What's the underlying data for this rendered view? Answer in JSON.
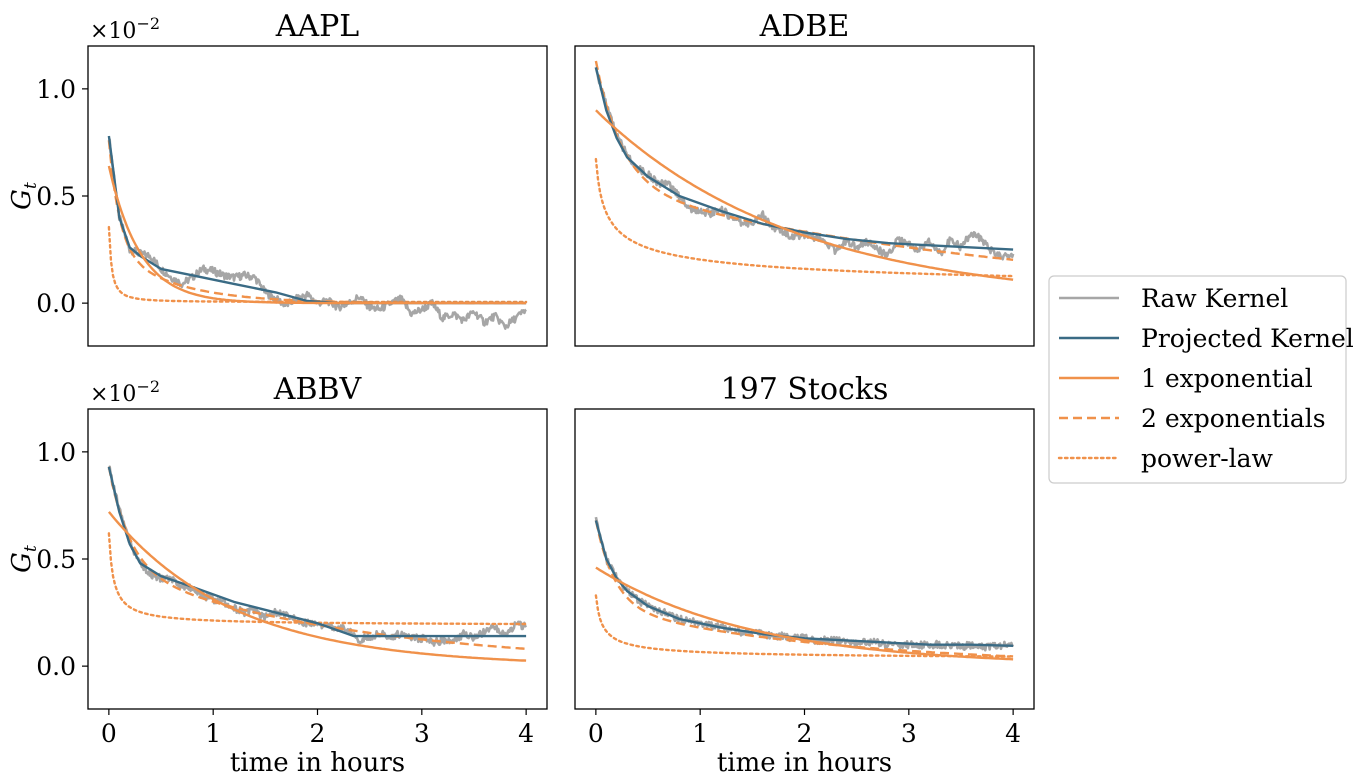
{
  "chart_data": {
    "type": "line",
    "figure": {
      "xlabel": "time in hours",
      "ylabel": "G_t",
      "ylabel_main": "G",
      "ylabel_sub": "t",
      "scale_base": "×10",
      "scale_exp": "−2",
      "xlim": [
        -0.2,
        4.2
      ],
      "ylim": [
        -0.2,
        1.2
      ],
      "xticks": [
        0,
        1,
        2,
        3,
        4
      ],
      "yticks": [
        0.0,
        0.5,
        1.0
      ],
      "xtick_labels": [
        "0",
        "1",
        "2",
        "3",
        "4"
      ],
      "ytick_labels": [
        "0.0",
        "0.5",
        "1.0"
      ],
      "shared_x": true,
      "shared_y": true
    },
    "legend": {
      "placement": "right",
      "entries": [
        {
          "label": "Raw Kernel",
          "color": "#a6a6a6",
          "style": "solid"
        },
        {
          "label": "Projected Kernel",
          "color": "#3a6b85",
          "style": "solid"
        },
        {
          "label": "1 exponential",
          "color": "#f0914a",
          "style": "solid"
        },
        {
          "label": "2 exponentials",
          "color": "#f0914a",
          "style": "dashed"
        },
        {
          "label": "power-law",
          "color": "#f0914a",
          "style": "dotted"
        }
      ]
    },
    "panels": [
      {
        "title": "AAPL",
        "raw": {
          "x": [
            0,
            0.1,
            0.2,
            0.3,
            0.4,
            0.5,
            0.6,
            0.7,
            0.8,
            0.9,
            1.0,
            1.1,
            1.2,
            1.3,
            1.4,
            1.5,
            1.6,
            1.7,
            1.8,
            1.9,
            2.0,
            2.1,
            2.2,
            2.3,
            2.4,
            2.5,
            2.6,
            2.7,
            2.8,
            2.9,
            3.0,
            3.1,
            3.2,
            3.3,
            3.4,
            3.5,
            3.6,
            3.7,
            3.8,
            3.9,
            4.0
          ],
          "y": [
            0.78,
            0.4,
            0.25,
            0.23,
            0.22,
            0.16,
            0.12,
            0.09,
            0.12,
            0.16,
            0.15,
            0.13,
            0.12,
            0.13,
            0.12,
            0.05,
            0.02,
            -0.01,
            0.02,
            0.04,
            0.0,
            0.01,
            -0.02,
            0.0,
            0.03,
            -0.02,
            -0.03,
            0.0,
            0.02,
            -0.05,
            -0.03,
            0.0,
            -0.07,
            -0.05,
            -0.08,
            -0.04,
            -0.09,
            -0.06,
            -0.11,
            -0.07,
            -0.03
          ]
        },
        "projected": {
          "x": [
            0,
            0.1,
            0.2,
            0.3,
            0.5,
            0.8,
            1.2,
            1.6,
            1.9,
            2.2,
            2.6,
            3.0,
            3.5,
            4.0
          ],
          "y": [
            0.78,
            0.4,
            0.26,
            0.22,
            0.16,
            0.13,
            0.09,
            0.05,
            0.01,
            0.0,
            0.0,
            0.0,
            0.0,
            0.0
          ]
        },
        "one_exp": {
          "A": 0.64,
          "tau": 0.3,
          "c": 0.0
        },
        "two_exp": {
          "A1": 0.5,
          "tau1": 0.1,
          "A2": 0.26,
          "tau2": 0.6,
          "c": 0.0
        },
        "power": {
          "a": 0.35,
          "b": 0.005,
          "k": 1.5,
          "x0": 0.04,
          "c": 0.0
        }
      },
      {
        "title": "ADBE",
        "raw": {
          "x": [
            0,
            0.1,
            0.2,
            0.3,
            0.4,
            0.5,
            0.6,
            0.7,
            0.8,
            0.9,
            1.0,
            1.1,
            1.2,
            1.3,
            1.4,
            1.5,
            1.6,
            1.7,
            1.8,
            1.9,
            2.0,
            2.1,
            2.2,
            2.3,
            2.4,
            2.5,
            2.6,
            2.7,
            2.8,
            2.9,
            3.0,
            3.1,
            3.2,
            3.3,
            3.4,
            3.5,
            3.6,
            3.7,
            3.8,
            3.9,
            4.0
          ],
          "y": [
            1.1,
            0.92,
            0.78,
            0.69,
            0.63,
            0.6,
            0.56,
            0.55,
            0.5,
            0.44,
            0.43,
            0.42,
            0.44,
            0.4,
            0.37,
            0.38,
            0.41,
            0.35,
            0.33,
            0.31,
            0.32,
            0.3,
            0.29,
            0.24,
            0.29,
            0.26,
            0.29,
            0.25,
            0.22,
            0.3,
            0.27,
            0.25,
            0.29,
            0.23,
            0.3,
            0.26,
            0.33,
            0.3,
            0.24,
            0.22,
            0.23
          ]
        },
        "projected": {
          "x": [
            0,
            0.1,
            0.2,
            0.3,
            0.5,
            0.8,
            1.2,
            1.6,
            2.0,
            2.4,
            2.8,
            3.2,
            3.6,
            4.0
          ],
          "y": [
            1.1,
            0.9,
            0.77,
            0.68,
            0.59,
            0.5,
            0.43,
            0.37,
            0.33,
            0.3,
            0.28,
            0.27,
            0.26,
            0.25
          ]
        },
        "one_exp": {
          "A": 0.9,
          "tau": 1.9,
          "c": 0.0
        },
        "two_exp": {
          "A1": 0.58,
          "tau1": 0.25,
          "A2": 0.55,
          "tau2": 4.0,
          "c": 0.0
        },
        "power": {
          "a": 0.66,
          "b": 0.012,
          "k": 0.38,
          "x0": 0.04,
          "c": 0.0
        }
      },
      {
        "title": "ABBV",
        "raw": {
          "x": [
            0,
            0.1,
            0.2,
            0.3,
            0.4,
            0.5,
            0.6,
            0.7,
            0.8,
            0.9,
            1.0,
            1.1,
            1.2,
            1.3,
            1.4,
            1.5,
            1.6,
            1.7,
            1.8,
            1.9,
            2.0,
            2.1,
            2.2,
            2.3,
            2.4,
            2.5,
            2.6,
            2.7,
            2.8,
            2.9,
            3.0,
            3.1,
            3.2,
            3.3,
            3.4,
            3.5,
            3.6,
            3.7,
            3.8,
            3.9,
            4.0
          ],
          "y": [
            0.93,
            0.73,
            0.58,
            0.48,
            0.43,
            0.41,
            0.4,
            0.38,
            0.36,
            0.33,
            0.31,
            0.3,
            0.27,
            0.25,
            0.26,
            0.23,
            0.25,
            0.24,
            0.22,
            0.2,
            0.19,
            0.19,
            0.18,
            0.17,
            0.12,
            0.14,
            0.15,
            0.14,
            0.15,
            0.13,
            0.13,
            0.11,
            0.12,
            0.12,
            0.15,
            0.13,
            0.16,
            0.18,
            0.15,
            0.19,
            0.19
          ]
        },
        "projected": {
          "x": [
            0,
            0.1,
            0.2,
            0.3,
            0.5,
            0.8,
            1.2,
            1.6,
            2.0,
            2.35,
            2.6,
            3.0,
            3.5,
            4.0
          ],
          "y": [
            0.93,
            0.72,
            0.57,
            0.48,
            0.42,
            0.37,
            0.3,
            0.25,
            0.2,
            0.14,
            0.14,
            0.14,
            0.14,
            0.14
          ]
        },
        "one_exp": {
          "A": 0.72,
          "tau": 1.2,
          "c": 0.0
        },
        "two_exp": {
          "A1": 0.47,
          "tau1": 0.2,
          "A2": 0.46,
          "tau2": 2.3,
          "c": 0.0
        },
        "power": {
          "a": 0.43,
          "b": 0.07,
          "k": 0.9,
          "x0": 0.04,
          "c": 0.12
        }
      },
      {
        "title": "197 Stocks",
        "raw": {
          "x": [
            0,
            0.1,
            0.2,
            0.3,
            0.4,
            0.5,
            0.6,
            0.7,
            0.8,
            0.9,
            1.0,
            1.1,
            1.2,
            1.3,
            1.4,
            1.5,
            1.6,
            1.7,
            1.8,
            1.9,
            2.0,
            2.1,
            2.2,
            2.3,
            2.4,
            2.5,
            2.6,
            2.7,
            2.8,
            2.9,
            3.0,
            3.1,
            3.2,
            3.3,
            3.4,
            3.5,
            3.6,
            3.7,
            3.8,
            3.9,
            4.0
          ],
          "y": [
            0.68,
            0.5,
            0.41,
            0.35,
            0.31,
            0.28,
            0.26,
            0.24,
            0.22,
            0.21,
            0.2,
            0.19,
            0.18,
            0.17,
            0.16,
            0.16,
            0.15,
            0.14,
            0.14,
            0.13,
            0.13,
            0.12,
            0.12,
            0.12,
            0.11,
            0.11,
            0.11,
            0.11,
            0.1,
            0.1,
            0.1,
            0.1,
            0.1,
            0.1,
            0.1,
            0.09,
            0.1,
            0.09,
            0.09,
            0.1,
            0.1
          ]
        },
        "projected": {
          "x": [
            0,
            0.1,
            0.2,
            0.3,
            0.5,
            0.8,
            1.2,
            1.6,
            2.0,
            2.4,
            2.8,
            3.2,
            3.6,
            4.0
          ],
          "y": [
            0.68,
            0.5,
            0.41,
            0.35,
            0.28,
            0.22,
            0.18,
            0.15,
            0.13,
            0.12,
            0.11,
            0.1,
            0.1,
            0.095
          ]
        },
        "one_exp": {
          "A": 0.46,
          "tau": 1.5,
          "c": 0.0
        },
        "two_exp": {
          "A1": 0.4,
          "tau1": 0.18,
          "A2": 0.28,
          "tau2": 2.2,
          "c": 0.0
        },
        "power": {
          "a": 0.3,
          "b": 0.03,
          "k": 0.65,
          "x0": 0.04,
          "c": 0.0
        }
      }
    ]
  }
}
